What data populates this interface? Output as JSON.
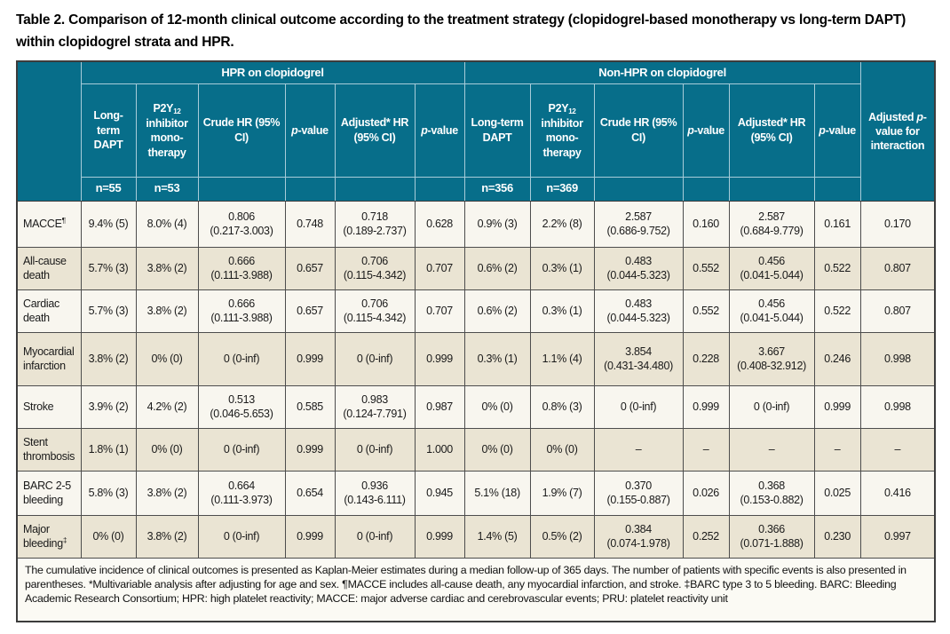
{
  "title": "Table 2. Comparison of 12-month clinical outcome according to the treatment strategy (clopidogrel-based monotherapy vs long-term DAPT) within clopidogrel strata and HPR.",
  "colors": {
    "header_teal": "#076e8a",
    "row_cream": "#f8f6ef",
    "row_beige": "#eae4d3",
    "footnote_bg": "#fbfaf4",
    "body_border": "#4d4d4d",
    "header_border": "#a8ccd9"
  },
  "table": {
    "group_headers": [
      "HPR on clopidogrel",
      "Non-HPR on clopidogrel"
    ],
    "interaction": {
      "prefix": "Adjusted ",
      "p": "p",
      "suffix": "-value for interaction"
    },
    "col_labels": {
      "long_term": "Long-term DAPT",
      "p2y_base": "P2Y",
      "p2y_sub": "12",
      "p2y_rest": " inhibitor mono-therapy",
      "crude_hr": "Crude HR (95% CI)",
      "adjusted_hr": "Adjusted* HR (95% CI)",
      "p_italic": "p",
      "p_suffix": "-value"
    },
    "n_values": {
      "hpr_dapt": "n=55",
      "hpr_mono": "n=53",
      "nonhpr_dapt": "n=356",
      "nonhpr_mono": "n=369"
    },
    "rows": [
      {
        "label": "MACCE",
        "sup": "¶",
        "cells": [
          "9.4% (5)",
          "8.0% (4)",
          "0.806 (0.217-3.003)",
          "0.748",
          "0.718 (0.189-2.737)",
          "0.628",
          "0.9% (3)",
          "2.2% (8)",
          "2.587 (0.686-9.752)",
          "0.160",
          "2.587 (0.684-9.779)",
          "0.161",
          "0.170"
        ]
      },
      {
        "label": "All-cause death",
        "sup": "",
        "cells": [
          "5.7% (3)",
          "3.8% (2)",
          "0.666 (0.111-3.988)",
          "0.657",
          "0.706 (0.115-4.342)",
          "0.707",
          "0.6% (2)",
          "0.3% (1)",
          "0.483 (0.044-5.323)",
          "0.552",
          "0.456 (0.041-5.044)",
          "0.522",
          "0.807"
        ]
      },
      {
        "label": "Cardiac death",
        "sup": "",
        "cells": [
          "5.7% (3)",
          "3.8% (2)",
          "0.666 (0.111-3.988)",
          "0.657",
          "0.706 (0.115-4.342)",
          "0.707",
          "0.6% (2)",
          "0.3% (1)",
          "0.483 (0.044-5.323)",
          "0.552",
          "0.456 (0.041-5.044)",
          "0.522",
          "0.807"
        ]
      },
      {
        "label": "Myocardial infarction",
        "sup": "",
        "cells": [
          "3.8% (2)",
          "0% (0)",
          "0 (0-inf)",
          "0.999",
          "0 (0-inf)",
          "0.999",
          "0.3% (1)",
          "1.1% (4)",
          "3.854 (0.431-34.480)",
          "0.228",
          "3.667 (0.408-32.912)",
          "0.246",
          "0.998"
        ]
      },
      {
        "label": "Stroke",
        "sup": "",
        "cells": [
          "3.9% (2)",
          "4.2% (2)",
          "0.513 (0.046-5.653)",
          "0.585",
          "0.983 (0.124-7.791)",
          "0.987",
          "0% (0)",
          "0.8% (3)",
          "0 (0-inf)",
          "0.999",
          "0 (0-inf)",
          "0.999",
          "0.998"
        ]
      },
      {
        "label": "Stent thrombosis",
        "sup": "",
        "cells": [
          "1.8% (1)",
          "0% (0)",
          "0 (0-inf)",
          "0.999",
          "0 (0-inf)",
          "1.000",
          "0% (0)",
          "0% (0)",
          "–",
          "–",
          "–",
          "–",
          "–"
        ]
      },
      {
        "label": "BARC 2-5 bleeding",
        "sup": "",
        "cells": [
          "5.8% (3)",
          "3.8% (2)",
          "0.664 (0.111-3.973)",
          "0.654",
          "0.936 (0.143-6.111)",
          "0.945",
          "5.1% (18)",
          "1.9% (7)",
          "0.370 (0.155-0.887)",
          "0.026",
          "0.368 (0.153-0.882)",
          "0.025",
          "0.416"
        ]
      },
      {
        "label": "Major bleeding",
        "sup": "‡",
        "cells": [
          "0% (0)",
          "3.8% (2)",
          "0 (0-inf)",
          "0.999",
          "0 (0-inf)",
          "0.999",
          "1.4% (5)",
          "0.5% (2)",
          "0.384 (0.074-1.978)",
          "0.252",
          "0.366 (0.071-1.888)",
          "0.230",
          "0.997"
        ]
      }
    ]
  },
  "footnote": "The cumulative incidence of clinical outcomes is presented as Kaplan-Meier estimates during a median follow-up of 365 days. The number of patients with specific events is also presented in parentheses. *Multivariable analysis after adjusting for age and sex. ¶MACCE includes all-cause death, any myocardial infarction, and stroke. ‡BARC type 3 to 5 bleeding. BARC: Bleeding Academic Research Consortium; HPR: high platelet reactivity; MACCE: major adverse cardiac and cerebrovascular events; PRU: platelet reactivity unit"
}
